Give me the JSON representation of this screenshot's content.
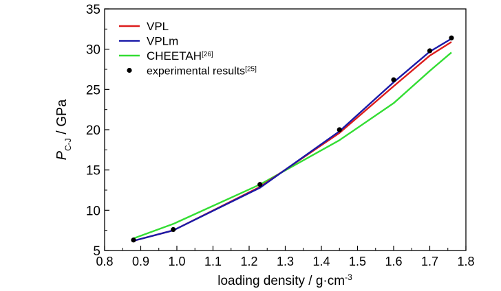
{
  "chart_data": {
    "type": "line",
    "xlabel": {
      "main": "loading density / g·cm",
      "sup": "-3"
    },
    "ylabel": {
      "main": "P",
      "sub": "C-J",
      "rest": " / GPa"
    },
    "xlim": [
      0.8,
      1.8
    ],
    "ylim": [
      5,
      35
    ],
    "xticks": [
      "0.8",
      "0.9",
      "1.0",
      "1.1",
      "1.2",
      "1.3",
      "1.4",
      "1.5",
      "1.6",
      "1.7",
      "1.8"
    ],
    "yticks": [
      "5",
      "10",
      "15",
      "20",
      "25",
      "30",
      "35"
    ],
    "grid": false,
    "legend_position": "top-left",
    "series": [
      {
        "name": "VPL",
        "sup": "",
        "kind": "line",
        "color": "#dd1c1c",
        "x": [
          0.88,
          0.99,
          1.23,
          1.45,
          1.6,
          1.7,
          1.76
        ],
        "y": [
          6.2,
          7.5,
          12.9,
          19.6,
          25.4,
          29.2,
          30.9
        ]
      },
      {
        "name": "VPLm",
        "sup": "",
        "kind": "line",
        "color": "#1a1aa8",
        "x": [
          0.88,
          0.99,
          1.23,
          1.45,
          1.6,
          1.7,
          1.76
        ],
        "y": [
          6.2,
          7.5,
          12.8,
          19.8,
          25.9,
          29.7,
          31.3
        ]
      },
      {
        "name": "CHEETAH",
        "sup": "[26]",
        "kind": "line",
        "color": "#33dd33",
        "x": [
          0.88,
          0.99,
          1.23,
          1.45,
          1.6,
          1.7,
          1.76
        ],
        "y": [
          6.5,
          8.3,
          13.2,
          18.7,
          23.3,
          27.3,
          29.6
        ]
      },
      {
        "name": "experimental results",
        "sup": "[25]",
        "kind": "scatter",
        "color": "#000000",
        "x": [
          0.88,
          0.99,
          1.23,
          1.45,
          1.6,
          1.7,
          1.76
        ],
        "y": [
          6.3,
          7.6,
          13.2,
          20.0,
          26.2,
          29.8,
          31.4
        ]
      }
    ]
  }
}
